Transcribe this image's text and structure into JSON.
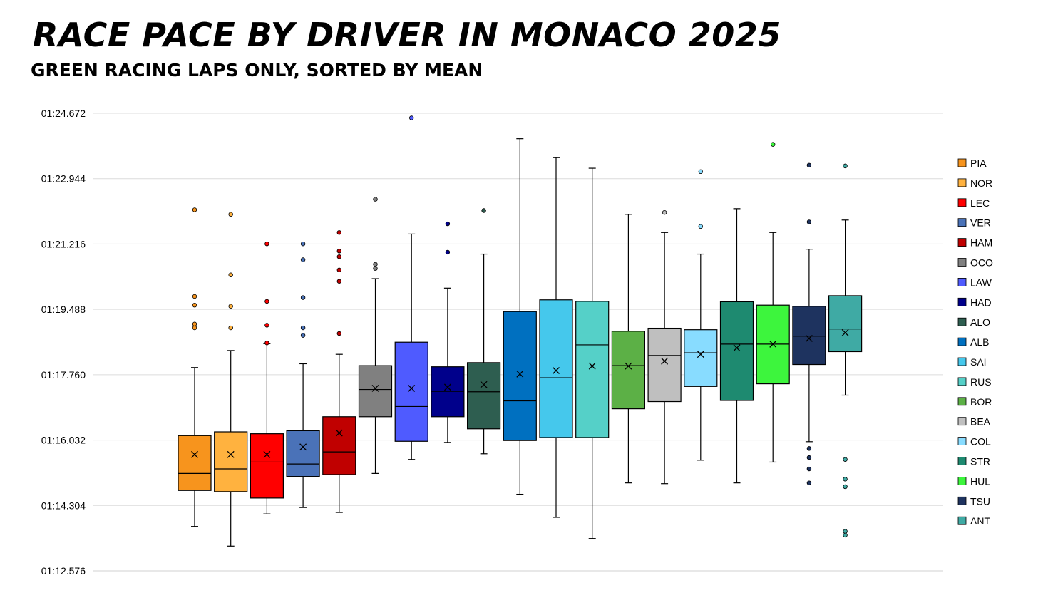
{
  "chart_data": {
    "type": "box",
    "title": "RACE PACE BY DRIVER IN MONACO 2025",
    "subtitle": "GREEN RACING LAPS ONLY, SORTED BY MEAN",
    "yunit": "seconds",
    "ylim": [
      72.576,
      84.672
    ],
    "yticks": [
      72.576,
      74.304,
      76.032,
      77.76,
      79.488,
      81.216,
      82.944,
      84.672
    ],
    "ytick_labels": [
      "01:12.576",
      "01:14.304",
      "01:16.032",
      "01:17.760",
      "01:19.488",
      "01:21.216",
      "01:22.944",
      "01:24.672"
    ],
    "legend_position": "right",
    "series": [
      {
        "name": "PIA",
        "color": "#F7941D",
        "whisker_low": 73.75,
        "q1": 74.7,
        "median": 75.15,
        "q3": 76.15,
        "whisker_high": 77.95,
        "mean": 75.65,
        "outliers": [
          82.12,
          79.83,
          79.6,
          79.1,
          79.0
        ]
      },
      {
        "name": "NOR",
        "color": "#FFB23F",
        "whisker_low": 73.23,
        "q1": 74.67,
        "median": 75.27,
        "q3": 76.25,
        "whisker_high": 78.4,
        "mean": 75.65,
        "outliers": [
          82.0,
          80.4,
          79.57,
          79.0
        ]
      },
      {
        "name": "LEC",
        "color": "#FF0000",
        "whisker_low": 74.08,
        "q1": 74.5,
        "median": 75.45,
        "q3": 76.2,
        "whisker_high": 78.58,
        "mean": 75.65,
        "outliers": [
          81.22,
          79.7,
          79.07,
          78.6
        ]
      },
      {
        "name": "VER",
        "color": "#4A72B8",
        "whisker_low": 74.25,
        "q1": 75.07,
        "median": 75.4,
        "q3": 76.28,
        "whisker_high": 78.05,
        "mean": 75.85,
        "outliers": [
          81.22,
          80.8,
          79.8,
          79.0,
          78.8
        ]
      },
      {
        "name": "HAM",
        "color": "#C00000",
        "whisker_low": 74.12,
        "q1": 75.12,
        "median": 75.72,
        "q3": 76.65,
        "whisker_high": 78.3,
        "mean": 76.22,
        "outliers": [
          81.52,
          81.03,
          80.88,
          80.53,
          80.23,
          78.85
        ]
      },
      {
        "name": "OCO",
        "color": "#808080",
        "whisker_low": 75.15,
        "q1": 76.65,
        "median": 77.37,
        "q3": 78.0,
        "whisker_high": 80.3,
        "mean": 77.4,
        "outliers": [
          82.4,
          80.68,
          80.57
        ]
      },
      {
        "name": "LAW",
        "color": "#4F5BFF",
        "whisker_low": 75.52,
        "q1": 76.0,
        "median": 76.92,
        "q3": 78.62,
        "whisker_high": 81.48,
        "mean": 77.4,
        "outliers": [
          84.55
        ]
      },
      {
        "name": "HAD",
        "color": "#00008B",
        "whisker_low": 75.97,
        "q1": 76.65,
        "median": 77.32,
        "q3": 77.97,
        "whisker_high": 80.05,
        "mean": 77.43,
        "outliers": [
          81.75,
          81.0
        ]
      },
      {
        "name": "ALO",
        "color": "#2E5E50",
        "whisker_low": 75.67,
        "q1": 76.33,
        "median": 77.31,
        "q3": 78.08,
        "whisker_high": 80.95,
        "mean": 77.5,
        "outliers": [
          82.1
        ]
      },
      {
        "name": "ALB",
        "color": "#0070C0",
        "whisker_low": 74.6,
        "q1": 76.02,
        "median": 77.07,
        "q3": 79.43,
        "whisker_high": 84.0,
        "mean": 77.78,
        "outliers": []
      },
      {
        "name": "SAI",
        "color": "#45C8EC",
        "whisker_low": 73.99,
        "q1": 76.1,
        "median": 77.68,
        "q3": 79.74,
        "whisker_high": 83.5,
        "mean": 77.87,
        "outliers": []
      },
      {
        "name": "RUS",
        "color": "#55D0C8",
        "whisker_low": 73.43,
        "q1": 76.1,
        "median": 78.55,
        "q3": 79.7,
        "whisker_high": 83.22,
        "mean": 77.99,
        "outliers": []
      },
      {
        "name": "BOR",
        "color": "#5CB046",
        "whisker_low": 74.9,
        "q1": 76.86,
        "median": 78.0,
        "q3": 78.91,
        "whisker_high": 82.0,
        "mean": 77.99,
        "outliers": []
      },
      {
        "name": "BEA",
        "color": "#BFBFBF",
        "whisker_low": 74.88,
        "q1": 77.05,
        "median": 78.27,
        "q3": 78.99,
        "whisker_high": 81.52,
        "mean": 78.12,
        "outliers": [
          82.05
        ]
      },
      {
        "name": "COL",
        "color": "#88DCFF",
        "whisker_low": 75.5,
        "q1": 77.45,
        "median": 78.34,
        "q3": 78.95,
        "whisker_high": 80.95,
        "mean": 78.3,
        "outliers": [
          83.13,
          81.68
        ]
      },
      {
        "name": "STR",
        "color": "#1E8A70",
        "whisker_low": 74.9,
        "q1": 77.08,
        "median": 78.57,
        "q3": 79.69,
        "whisker_high": 82.15,
        "mean": 78.47,
        "outliers": []
      },
      {
        "name": "HUL",
        "color": "#3DF53D",
        "whisker_low": 75.45,
        "q1": 77.52,
        "median": 78.57,
        "q3": 79.6,
        "whisker_high": 81.52,
        "mean": 78.57,
        "outliers": [
          83.85
        ]
      },
      {
        "name": "TSU",
        "color": "#1E335F",
        "whisker_low": 75.99,
        "q1": 78.03,
        "median": 78.78,
        "q3": 79.57,
        "whisker_high": 81.08,
        "mean": 78.72,
        "outliers": [
          83.3,
          81.8,
          75.81,
          75.57,
          75.27,
          74.9
        ]
      },
      {
        "name": "ANT",
        "color": "#3FAAA4",
        "whisker_low": 77.22,
        "q1": 78.37,
        "median": 78.97,
        "q3": 79.85,
        "whisker_high": 81.85,
        "mean": 78.87,
        "outliers": [
          83.28,
          75.52,
          75.0,
          74.8,
          73.62,
          73.52
        ]
      }
    ]
  }
}
